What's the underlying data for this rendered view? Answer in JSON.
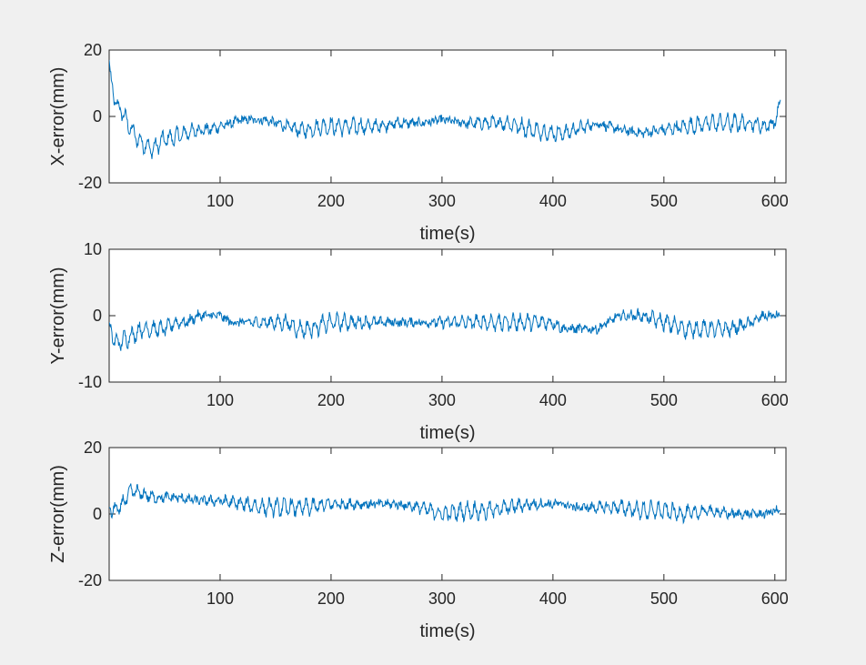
{
  "chart_data": [
    {
      "type": "line",
      "xlabel": "time(s)",
      "ylabel": "X-error(mm)",
      "xlim": [
        0,
        610
      ],
      "ylim": [
        -20,
        20
      ],
      "xticks": [
        "100",
        "200",
        "300",
        "400",
        "500",
        "600"
      ],
      "yticks": [
        "-20",
        "0",
        "20"
      ],
      "grid": false,
      "line_color": "#0072bd",
      "series": [
        {
          "x": [
            0,
            2,
            4,
            6,
            8,
            10,
            14,
            18,
            22,
            26,
            30,
            35,
            40,
            45,
            50,
            60,
            70,
            80,
            90,
            100,
            110,
            120,
            130,
            140,
            150,
            160,
            170,
            180,
            190,
            200,
            220,
            240,
            260,
            280,
            300,
            320,
            340,
            360,
            380,
            400,
            410,
            420,
            440,
            460,
            480,
            500,
            520,
            540,
            560,
            580,
            590,
            600,
            605
          ],
          "values": [
            17,
            10,
            6,
            4,
            3,
            2,
            0,
            -3,
            -5,
            -7,
            -8,
            -9,
            -10,
            -8,
            -7,
            -6,
            -5,
            -4,
            -4,
            -3,
            -2,
            -1,
            -1,
            -1,
            -2,
            -3,
            -4,
            -4,
            -3,
            -3,
            -3,
            -3,
            -2,
            -2,
            -1,
            -2,
            -2,
            -2,
            -4,
            -5,
            -5,
            -4,
            -2,
            -4,
            -5,
            -4,
            -3,
            -2,
            -2,
            -2,
            -3,
            -2,
            5
          ]
        }
      ]
    },
    {
      "type": "line",
      "xlabel": "time(s)",
      "ylabel": "Y-error(mm)",
      "xlim": [
        0,
        610
      ],
      "ylim": [
        -10,
        10
      ],
      "xticks": [
        "100",
        "200",
        "300",
        "400",
        "500",
        "600"
      ],
      "yticks": [
        "-10",
        "0",
        "10"
      ],
      "grid": false,
      "line_color": "#0072bd",
      "series": [
        {
          "x": [
            0,
            5,
            10,
            20,
            30,
            40,
            50,
            60,
            70,
            80,
            90,
            100,
            110,
            120,
            140,
            160,
            170,
            180,
            200,
            220,
            240,
            260,
            280,
            300,
            320,
            340,
            360,
            380,
            400,
            410,
            420,
            440,
            460,
            480,
            500,
            520,
            540,
            560,
            580,
            590,
            600,
            605
          ],
          "values": [
            -1,
            -4,
            -4,
            -3,
            -2,
            -2,
            -2,
            -1,
            -1,
            0,
            0,
            0,
            -1,
            -1,
            -1,
            -1,
            -2,
            -2,
            -1,
            -1,
            -1,
            -1,
            -1,
            -1,
            -1,
            -1,
            -1,
            -1,
            -1,
            -2,
            -2,
            -2,
            0,
            0,
            -1,
            -2,
            -2,
            -2,
            -1,
            0,
            0,
            0
          ]
        }
      ]
    },
    {
      "type": "line",
      "xlabel": "time(s)",
      "ylabel": "Z-error(mm)",
      "xlim": [
        0,
        610
      ],
      "ylim": [
        -20,
        20
      ],
      "xticks": [
        "100",
        "200",
        "300",
        "400",
        "500",
        "600"
      ],
      "yticks": [
        "-20",
        "0",
        "20"
      ],
      "grid": false,
      "line_color": "#0072bd",
      "series": [
        {
          "x": [
            0,
            5,
            10,
            20,
            30,
            40,
            60,
            80,
            100,
            120,
            140,
            160,
            180,
            200,
            220,
            240,
            260,
            280,
            300,
            320,
            340,
            360,
            380,
            400,
            410,
            420,
            440,
            460,
            480,
            500,
            520,
            540,
            560,
            580,
            590,
            600,
            605
          ],
          "values": [
            2,
            1,
            2,
            7,
            6,
            5,
            5,
            4,
            4,
            3,
            2,
            2,
            2,
            3,
            3,
            3,
            3,
            2,
            0,
            1,
            1,
            2,
            3,
            3,
            3,
            2,
            2,
            2,
            1,
            1,
            0,
            1,
            0,
            0,
            0,
            1,
            1
          ]
        }
      ]
    }
  ]
}
